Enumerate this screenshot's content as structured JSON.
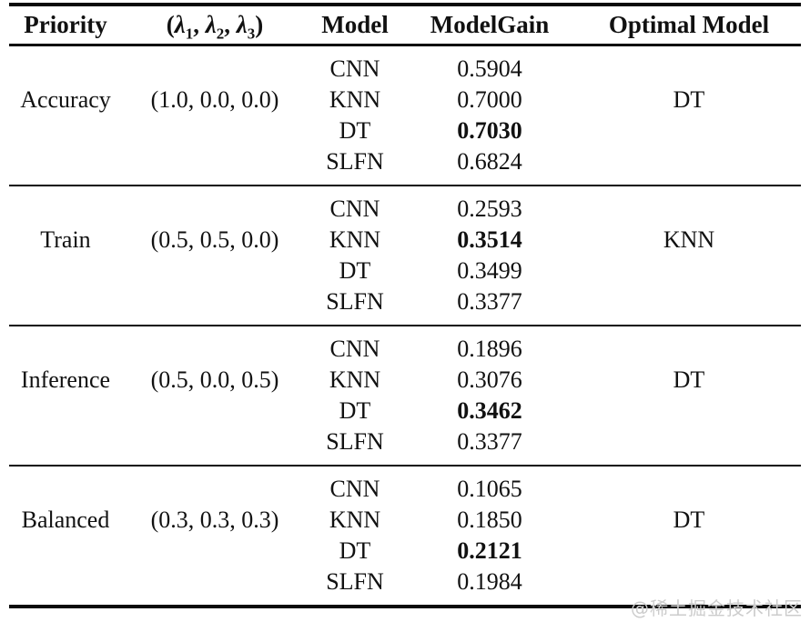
{
  "header": {
    "priority": "Priority",
    "lambda": {
      "pre": "(",
      "sym1": "λ",
      "sub1": "1",
      "sep1": ", ",
      "sym2": "λ",
      "sub2": "2",
      "sep2": ", ",
      "sym3": "λ",
      "sub3": "3",
      "post": ")"
    },
    "model": "Model",
    "model_gain": "ModelGain",
    "optimal_model": "Optimal Model"
  },
  "groups": [
    {
      "priority": "Accuracy",
      "lambda": "(1.0, 0.0, 0.0)",
      "optimal_model": "DT",
      "rows": [
        {
          "model": "CNN",
          "gain": "0.5904",
          "bold": false
        },
        {
          "model": "KNN",
          "gain": "0.7000",
          "bold": false
        },
        {
          "model": "DT",
          "gain": "0.7030",
          "bold": true
        },
        {
          "model": "SLFN",
          "gain": "0.6824",
          "bold": false
        }
      ]
    },
    {
      "priority": "Train",
      "lambda": "(0.5, 0.5, 0.0)",
      "optimal_model": "KNN",
      "rows": [
        {
          "model": "CNN",
          "gain": "0.2593",
          "bold": false
        },
        {
          "model": "KNN",
          "gain": "0.3514",
          "bold": true
        },
        {
          "model": "DT",
          "gain": "0.3499",
          "bold": false
        },
        {
          "model": "SLFN",
          "gain": "0.3377",
          "bold": false
        }
      ]
    },
    {
      "priority": "Inference",
      "lambda": "(0.5, 0.0, 0.5)",
      "optimal_model": "DT",
      "rows": [
        {
          "model": "CNN",
          "gain": "0.1896",
          "bold": false
        },
        {
          "model": "KNN",
          "gain": "0.3076",
          "bold": false
        },
        {
          "model": "DT",
          "gain": "0.3462",
          "bold": true
        },
        {
          "model": "SLFN",
          "gain": "0.3377",
          "bold": false
        }
      ]
    },
    {
      "priority": "Balanced",
      "lambda": "(0.3, 0.3, 0.3)",
      "optimal_model": "DT",
      "rows": [
        {
          "model": "CNN",
          "gain": "0.1065",
          "bold": false
        },
        {
          "model": "KNN",
          "gain": "0.1850",
          "bold": false
        },
        {
          "model": "DT",
          "gain": "0.2121",
          "bold": true
        },
        {
          "model": "SLFN",
          "gain": "0.1984",
          "bold": false
        }
      ]
    }
  ],
  "watermark": "@稀土掘金技术社区",
  "colors": {
    "text": "#111111",
    "rule": "#0a0a0a",
    "watermark": "#cccccc",
    "background": "#ffffff"
  }
}
